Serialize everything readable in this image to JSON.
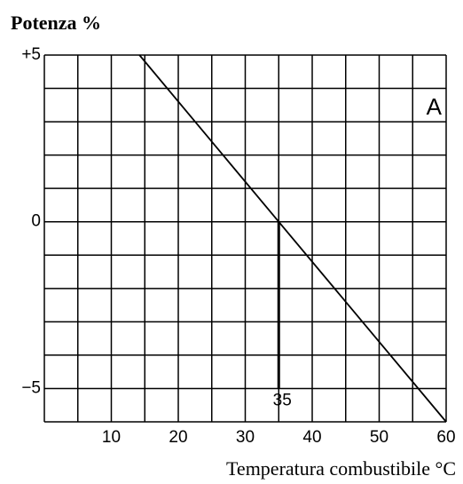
{
  "chart_data": {
    "type": "line",
    "title": "Potenza  %",
    "xlabel": "Temperatura combustibile °C",
    "x": [
      14.2,
      35,
      60
    ],
    "series": [
      {
        "color": "#000000",
        "values": [
          5,
          0,
          -6
        ]
      }
    ],
    "xlim": [
      0,
      60
    ],
    "ylim": [
      -6,
      5
    ],
    "xticks": [
      10,
      20,
      30,
      40,
      50,
      60
    ],
    "yticks": [
      {
        "value": 5,
        "label": "+5"
      },
      0,
      {
        "value": -5,
        "label": "−5"
      }
    ],
    "xgrid": [
      0,
      5,
      10,
      15,
      20,
      25,
      30,
      35,
      40,
      45,
      50,
      55,
      60
    ],
    "ygrid": [
      -6,
      -5,
      -4,
      -3,
      -2,
      -1,
      0,
      1,
      2,
      3,
      4,
      5
    ],
    "grid": true,
    "annotation": "A",
    "marker": {
      "x": 35,
      "y": [
        0,
        -5
      ],
      "label": "35"
    }
  }
}
